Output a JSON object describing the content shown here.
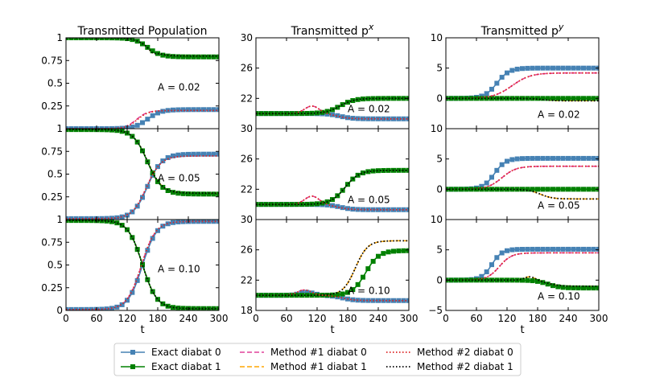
{
  "colors": {
    "exact0": "#4682b4",
    "exact1": "#008000",
    "method1_0": "#e0409a",
    "method1_1": "#ffa500",
    "method2_0": "#dd2222",
    "method2_1": "#000000"
  },
  "legend": {
    "placement": "bottom-center",
    "entries": [
      {
        "key": "exact0",
        "label": "Exact diabat 0",
        "style": "line-square"
      },
      {
        "key": "exact1",
        "label": "Exact diabat 1",
        "style": "line-square"
      },
      {
        "key": "method1_0",
        "label": "Method #1 diabat 0",
        "style": "dashed"
      },
      {
        "key": "method1_1",
        "label": "Method #1 diabat 1",
        "style": "dashed"
      },
      {
        "key": "method2_0",
        "label": "Method #2 diabat 0",
        "style": "dotted"
      },
      {
        "key": "method2_1",
        "label": "Method #2 diabat 1",
        "style": "dotted"
      }
    ]
  },
  "chart_data": [
    {
      "type": "line",
      "column": 0,
      "row": 0,
      "title": "Transmitted Population",
      "xlabel": "",
      "ylabel": "",
      "annotation": "A = 0.02",
      "xlim": [
        0,
        300
      ],
      "ylim": [
        0,
        1
      ],
      "xticks": [
        0,
        60,
        120,
        180,
        240,
        300
      ],
      "yticks": [
        0,
        0.25,
        0.5,
        0.75,
        1
      ],
      "ytick_labels": [
        "",
        "0.25",
        "0.5",
        "0.75",
        "1"
      ],
      "series": [
        {
          "key": "exact0",
          "curve": {
            "kind": "sig",
            "a": 0,
            "b": 0.21,
            "c": 160,
            "w": 13
          }
        },
        {
          "key": "exact1",
          "curve": {
            "kind": "sig",
            "a": 1,
            "b": 0.79,
            "c": 160,
            "w": 13
          }
        },
        {
          "key": "method1_0",
          "curve": {
            "kind": "sig",
            "a": 0,
            "b": 0.2,
            "c": 138,
            "w": 11,
            "bump": 0.0,
            "bc": 0,
            "bw": 1
          }
        },
        {
          "key": "method1_1",
          "curve": {
            "kind": "sig",
            "a": 1,
            "b": 0.8,
            "c": 160,
            "w": 13,
            "dip": -0.03,
            "dc": 170,
            "dw": 9
          }
        },
        {
          "key": "method2_0",
          "curve": {
            "kind": "sig",
            "a": 0,
            "b": 0.2,
            "c": 140,
            "w": 11
          }
        },
        {
          "key": "method2_1",
          "curve": {
            "kind": "sig",
            "a": 1,
            "b": 0.8,
            "c": 160,
            "w": 13,
            "dip": -0.03,
            "dc": 170,
            "dw": 9
          }
        }
      ]
    },
    {
      "type": "line",
      "column": 0,
      "row": 1,
      "title": "",
      "annotation": "A = 0.05",
      "xlim": [
        0,
        300
      ],
      "ylim": [
        0,
        1
      ],
      "xticks": [
        0,
        60,
        120,
        180,
        240,
        300
      ],
      "yticks": [
        0,
        0.25,
        0.5,
        0.75,
        1
      ],
      "ytick_labels": [
        "",
        "0.25",
        "0.5",
        "0.75",
        "1"
      ],
      "series": [
        {
          "key": "exact0",
          "curve": {
            "kind": "sig",
            "a": 0.01,
            "b": 0.72,
            "c": 160,
            "w": 14
          }
        },
        {
          "key": "exact1",
          "curve": {
            "kind": "sig",
            "a": 0.99,
            "b": 0.28,
            "c": 160,
            "w": 14
          }
        },
        {
          "key": "method1_0",
          "curve": {
            "kind": "sig",
            "a": 0.01,
            "b": 0.7,
            "c": 158,
            "w": 14
          }
        },
        {
          "key": "method1_1",
          "curve": {
            "kind": "sig",
            "a": 0.99,
            "b": 0.29,
            "c": 160,
            "w": 14
          }
        },
        {
          "key": "method2_0",
          "curve": {
            "kind": "sig",
            "a": 0.01,
            "b": 0.7,
            "c": 158,
            "w": 14
          }
        },
        {
          "key": "method2_1",
          "curve": {
            "kind": "sig",
            "a": 0.99,
            "b": 0.29,
            "c": 160,
            "w": 14
          }
        }
      ]
    },
    {
      "type": "line",
      "column": 0,
      "row": 2,
      "title": "",
      "annotation": "A = 0.10",
      "xlim": [
        0,
        300
      ],
      "ylim": [
        0,
        1
      ],
      "xticks": [
        0,
        60,
        120,
        180,
        240,
        300
      ],
      "yticks": [
        0,
        0.25,
        0.5,
        0.75,
        1
      ],
      "ytick_labels": [
        "0",
        "0.25",
        "0.5",
        "0.75",
        "1"
      ],
      "series": [
        {
          "key": "exact0",
          "curve": {
            "kind": "sig",
            "a": 0.01,
            "b": 0.98,
            "c": 150,
            "w": 14
          }
        },
        {
          "key": "exact1",
          "curve": {
            "kind": "sig",
            "a": 0.99,
            "b": 0.02,
            "c": 150,
            "w": 14
          }
        },
        {
          "key": "method1_0",
          "curve": {
            "kind": "sig",
            "a": 0.01,
            "b": 0.98,
            "c": 148,
            "w": 14
          }
        },
        {
          "key": "method1_1",
          "curve": {
            "kind": "sig",
            "a": 0.99,
            "b": 0.02,
            "c": 150,
            "w": 14
          }
        },
        {
          "key": "method2_0",
          "curve": {
            "kind": "sig",
            "a": 0.01,
            "b": 0.98,
            "c": 148,
            "w": 14
          }
        },
        {
          "key": "method2_1",
          "curve": {
            "kind": "sig",
            "a": 0.99,
            "b": 0.02,
            "c": 150,
            "w": 14
          }
        }
      ]
    },
    {
      "type": "line",
      "column": 1,
      "row": 0,
      "title": "Transmitted p",
      "title_sup": "x",
      "annotation": "A = 0.02",
      "xlim": [
        0,
        300
      ],
      "ylim": [
        18,
        30
      ],
      "xticks": [
        0,
        60,
        120,
        180,
        240,
        300
      ],
      "yticks": [
        18,
        22,
        26,
        30
      ],
      "ytick_labels": [
        "",
        "22",
        "26",
        "30"
      ],
      "series": [
        {
          "key": "exact0",
          "curve": {
            "kind": "sig",
            "a": 20,
            "b": 19.3,
            "c": 165,
            "w": 12
          }
        },
        {
          "key": "exact1",
          "curve": {
            "kind": "sig",
            "a": 20,
            "b": 22,
            "c": 165,
            "w": 14
          }
        },
        {
          "key": "method1_0",
          "curve": {
            "kind": "sig",
            "a": 20,
            "b": 19.3,
            "c": 160,
            "w": 12,
            "bump": 1.0,
            "bc": 110,
            "bw": 20
          }
        },
        {
          "key": "method1_1",
          "curve": {
            "kind": "sig",
            "a": 20,
            "b": 22,
            "c": 165,
            "w": 14
          }
        },
        {
          "key": "method2_0",
          "curve": {
            "kind": "sig",
            "a": 20,
            "b": 19.3,
            "c": 160,
            "w": 12,
            "bump": 1.0,
            "bc": 110,
            "bw": 20
          }
        },
        {
          "key": "method2_1",
          "curve": {
            "kind": "sig",
            "a": 20,
            "b": 22,
            "c": 165,
            "w": 14
          }
        }
      ]
    },
    {
      "type": "line",
      "column": 1,
      "row": 1,
      "title": "",
      "annotation": "A = 0.05",
      "xlim": [
        0,
        300
      ],
      "ylim": [
        18,
        30
      ],
      "xticks": [
        0,
        60,
        120,
        180,
        240,
        300
      ],
      "yticks": [
        18,
        22,
        26,
        30
      ],
      "ytick_labels": [
        "",
        "22",
        "26",
        "30"
      ],
      "series": [
        {
          "key": "exact0",
          "curve": {
            "kind": "sig",
            "a": 20,
            "b": 19.3,
            "c": 165,
            "w": 12
          }
        },
        {
          "key": "exact1",
          "curve": {
            "kind": "sig",
            "a": 20,
            "b": 24.5,
            "c": 175,
            "w": 14
          }
        },
        {
          "key": "method1_0",
          "curve": {
            "kind": "sig",
            "a": 20,
            "b": 19.3,
            "c": 160,
            "w": 12,
            "bump": 1.1,
            "bc": 110,
            "bw": 20
          }
        },
        {
          "key": "method1_1",
          "curve": {
            "kind": "sig",
            "a": 20,
            "b": 24.5,
            "c": 175,
            "w": 14
          }
        },
        {
          "key": "method2_0",
          "curve": {
            "kind": "sig",
            "a": 20,
            "b": 19.3,
            "c": 160,
            "w": 12,
            "bump": 1.1,
            "bc": 110,
            "bw": 20
          }
        },
        {
          "key": "method2_1",
          "curve": {
            "kind": "sig",
            "a": 20,
            "b": 24.5,
            "c": 175,
            "w": 14
          }
        }
      ]
    },
    {
      "type": "line",
      "column": 1,
      "row": 2,
      "title": "",
      "annotation": "A = 0.10",
      "xlim": [
        0,
        300
      ],
      "ylim": [
        18,
        30
      ],
      "xticks": [
        0,
        60,
        120,
        180,
        240,
        300
      ],
      "yticks": [
        18,
        22,
        26,
        30
      ],
      "ytick_labels": [
        "18",
        "22",
        "26",
        "30"
      ],
      "series": [
        {
          "key": "exact0",
          "curve": {
            "kind": "sig",
            "a": 20,
            "b": 19.3,
            "c": 170,
            "w": 12,
            "bump": 0.4,
            "bc": 100,
            "bw": 20
          }
        },
        {
          "key": "exact1",
          "curve": {
            "kind": "sig",
            "a": 20,
            "b": 25.9,
            "c": 215,
            "w": 13
          }
        },
        {
          "key": "method1_0",
          "curve": {
            "kind": "sig",
            "a": 20,
            "b": 19.3,
            "c": 170,
            "w": 12,
            "bump": 0.7,
            "bc": 95,
            "bw": 20
          }
        },
        {
          "key": "method1_1",
          "curve": {
            "kind": "sig",
            "a": 20,
            "b": 27.2,
            "c": 195,
            "w": 12
          }
        },
        {
          "key": "method2_0",
          "curve": {
            "kind": "sig",
            "a": 20,
            "b": 19.3,
            "c": 170,
            "w": 12,
            "bump": 0.7,
            "bc": 95,
            "bw": 20
          }
        },
        {
          "key": "method2_1",
          "curve": {
            "kind": "sig",
            "a": 20,
            "b": 27.2,
            "c": 195,
            "w": 12
          }
        }
      ]
    },
    {
      "type": "line",
      "column": 2,
      "row": 0,
      "title": "Transmitted p",
      "title_sup": "y",
      "annotation": "A = 0.02",
      "xlim": [
        0,
        300
      ],
      "ylim": [
        -5,
        10
      ],
      "xticks": [
        0,
        60,
        120,
        180,
        240,
        300
      ],
      "yticks": [
        -5,
        0,
        5,
        10
      ],
      "ytick_labels": [
        "",
        "0",
        "5",
        "10"
      ],
      "series": [
        {
          "key": "exact0",
          "curve": {
            "kind": "sig",
            "a": 0,
            "b": 5,
            "c": 100,
            "w": 12
          }
        },
        {
          "key": "exact1",
          "curve": {
            "kind": "sig",
            "a": 0,
            "b": 0,
            "c": 150,
            "w": 12
          }
        },
        {
          "key": "method1_0",
          "curve": {
            "kind": "sig",
            "a": 0,
            "b": 4.2,
            "c": 130,
            "w": 18
          }
        },
        {
          "key": "method1_1",
          "curve": {
            "kind": "sig",
            "a": 0,
            "b": -0.4,
            "c": 190,
            "w": 12
          }
        },
        {
          "key": "method2_0",
          "curve": {
            "kind": "sig",
            "a": 0,
            "b": 4.2,
            "c": 130,
            "w": 18
          }
        },
        {
          "key": "method2_1",
          "curve": {
            "kind": "sig",
            "a": 0,
            "b": -0.4,
            "c": 190,
            "w": 12
          }
        }
      ]
    },
    {
      "type": "line",
      "column": 2,
      "row": 1,
      "title": "",
      "annotation": "A = 0.05",
      "xlim": [
        0,
        300
      ],
      "ylim": [
        -5,
        10
      ],
      "xticks": [
        0,
        60,
        120,
        180,
        240,
        300
      ],
      "yticks": [
        -5,
        0,
        5,
        10
      ],
      "ytick_labels": [
        "",
        "0",
        "5",
        "10"
      ],
      "series": [
        {
          "key": "exact0",
          "curve": {
            "kind": "sig",
            "a": 0,
            "b": 5.1,
            "c": 95,
            "w": 11
          }
        },
        {
          "key": "exact1",
          "curve": {
            "kind": "sig",
            "a": 0,
            "b": 0,
            "c": 150,
            "w": 12
          }
        },
        {
          "key": "method1_0",
          "curve": {
            "kind": "sig",
            "a": 0,
            "b": 3.8,
            "c": 110,
            "w": 14
          }
        },
        {
          "key": "method1_1",
          "curve": {
            "kind": "sig",
            "a": 0,
            "b": -1.6,
            "c": 185,
            "w": 12
          }
        },
        {
          "key": "method2_0",
          "curve": {
            "kind": "sig",
            "a": 0,
            "b": 3.8,
            "c": 110,
            "w": 14
          }
        },
        {
          "key": "method2_1",
          "curve": {
            "kind": "sig",
            "a": 0,
            "b": -1.6,
            "c": 185,
            "w": 12
          }
        }
      ]
    },
    {
      "type": "line",
      "column": 2,
      "row": 2,
      "title": "",
      "annotation": "A = 0.10",
      "xlim": [
        0,
        300
      ],
      "ylim": [
        -5,
        10
      ],
      "xticks": [
        0,
        60,
        120,
        180,
        240,
        300
      ],
      "yticks": [
        -5,
        0,
        5,
        10
      ],
      "ytick_labels": [
        "−5",
        "0",
        "5",
        "10"
      ],
      "series": [
        {
          "key": "exact0",
          "curve": {
            "kind": "sig",
            "a": 0,
            "b": 5.1,
            "c": 90,
            "w": 10
          }
        },
        {
          "key": "exact1",
          "curve": {
            "kind": "sig",
            "a": 0,
            "b": -1.3,
            "c": 200,
            "w": 12
          }
        },
        {
          "key": "method1_0",
          "curve": {
            "kind": "sig",
            "a": 0,
            "b": 4.5,
            "c": 105,
            "w": 12
          }
        },
        {
          "key": "method1_1",
          "curve": {
            "kind": "sig",
            "a": 0,
            "b": -1.0,
            "c": 200,
            "w": 12,
            "bump": 0.6,
            "bc": 165,
            "bw": 15
          }
        },
        {
          "key": "method2_0",
          "curve": {
            "kind": "sig",
            "a": 0,
            "b": 4.5,
            "c": 105,
            "w": 12
          }
        },
        {
          "key": "method2_1",
          "curve": {
            "kind": "sig",
            "a": 0,
            "b": -1.0,
            "c": 200,
            "w": 12,
            "bump": 0.6,
            "bc": 165,
            "bw": 15
          }
        }
      ]
    }
  ],
  "x_axis_label": "t"
}
